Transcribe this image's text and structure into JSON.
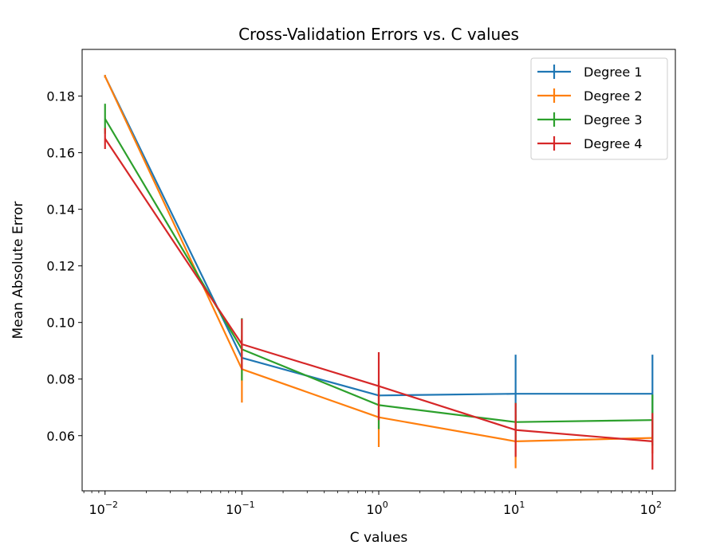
{
  "chart_data": {
    "type": "line",
    "title": "Cross-Validation Errors vs. C values",
    "xlabel": "C values",
    "ylabel": "Mean Absolute Error",
    "x_scale": "log",
    "x": [
      0.01,
      0.1,
      1,
      10,
      100
    ],
    "x_ticks": [
      {
        "base": "10",
        "exp": "−2"
      },
      {
        "base": "10",
        "exp": "−1"
      },
      {
        "base": "10",
        "exp": "0"
      },
      {
        "base": "10",
        "exp": "1"
      },
      {
        "base": "10",
        "exp": "2"
      }
    ],
    "y_ticks": [
      "0.06",
      "0.08",
      "0.10",
      "0.12",
      "0.14",
      "0.16",
      "0.18"
    ],
    "xlim": [
      0.0068,
      147
    ],
    "ylim": [
      0.0405,
      0.1965
    ],
    "grid": false,
    "legend_position": "top-right",
    "series": [
      {
        "name": "Degree 1",
        "color": "#1f77b4",
        "values": [
          0.187,
          0.0875,
          0.0742,
          0.0748,
          0.0748
        ],
        "errors": [
          0.0005,
          0.0008,
          0.0005,
          0.0138,
          0.0138
        ]
      },
      {
        "name": "Degree 2",
        "color": "#ff7f0e",
        "values": [
          0.187,
          0.0835,
          0.0665,
          0.058,
          0.0592
        ],
        "errors": [
          0.0005,
          0.0118,
          0.0105,
          0.0095,
          0.0055
        ]
      },
      {
        "name": "Degree 3",
        "color": "#2ca02c",
        "values": [
          0.172,
          0.0905,
          0.0708,
          0.0648,
          0.0655
        ],
        "errors": [
          0.0053,
          0.011,
          0.0085,
          0.0068,
          0.009
        ]
      },
      {
        "name": "Degree 4",
        "color": "#d62728",
        "values": [
          0.165,
          0.0923,
          0.0775,
          0.062,
          0.058
        ],
        "errors": [
          0.0037,
          0.009,
          0.012,
          0.0095,
          0.01
        ]
      }
    ]
  }
}
